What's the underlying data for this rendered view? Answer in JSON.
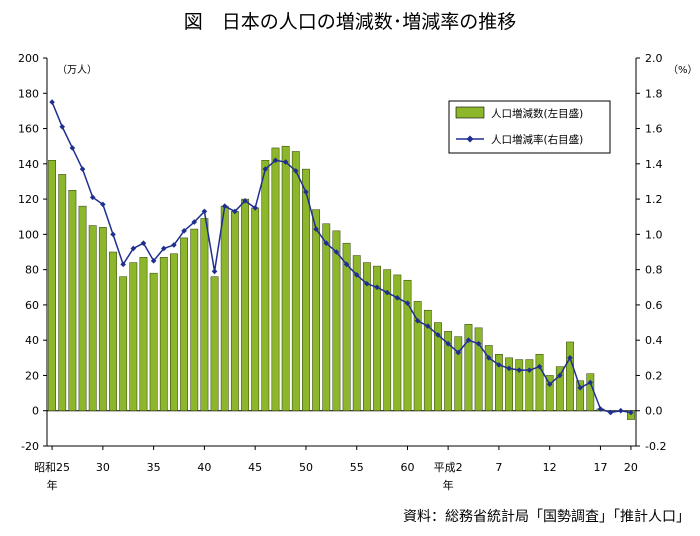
{
  "chart_data": {
    "type": "bar",
    "title": "図　日本の人口の増減数･増減率の推移",
    "source": "資料：総務省統計局「国勢調査」「推計人口」",
    "left_axis": {
      "unit": "（万人）",
      "ylim": [
        -20,
        200
      ],
      "ticks": [
        200,
        180,
        160,
        140,
        120,
        100,
        80,
        60,
        40,
        20,
        0,
        -20
      ],
      "tick_labels": [
        "200",
        "180",
        "160",
        "140",
        "120",
        "100",
        "80",
        "60",
        "40",
        "20",
        "0",
        "-20"
      ]
    },
    "right_axis": {
      "unit": "（%）",
      "ylim": [
        -0.2,
        2.0
      ],
      "ticks": [
        2.0,
        1.8,
        1.6,
        1.4,
        1.2,
        1.0,
        0.8,
        0.6,
        0.4,
        0.2,
        0.0,
        -0.2
      ],
      "tick_labels": [
        "2.0",
        "1.8",
        "1.6",
        "1.4",
        "1.2",
        "1.0",
        "0.8",
        "0.6",
        "0.4",
        "0.2",
        "0.0",
        "-0.2"
      ]
    },
    "x_tick_labels": [
      {
        "index": 0,
        "label": "昭和25",
        "sub": "年"
      },
      {
        "index": 5,
        "label": "30",
        "sub": ""
      },
      {
        "index": 10,
        "label": "35",
        "sub": ""
      },
      {
        "index": 15,
        "label": "40",
        "sub": ""
      },
      {
        "index": 20,
        "label": "45",
        "sub": ""
      },
      {
        "index": 25,
        "label": "50",
        "sub": ""
      },
      {
        "index": 30,
        "label": "55",
        "sub": ""
      },
      {
        "index": 35,
        "label": "60",
        "sub": ""
      },
      {
        "index": 39,
        "label": "平成2",
        "sub": "年"
      },
      {
        "index": 44,
        "label": "7",
        "sub": ""
      },
      {
        "index": 49,
        "label": "12",
        "sub": ""
      },
      {
        "index": 54,
        "label": "17",
        "sub": ""
      },
      {
        "index": 57,
        "label": "20",
        "sub": ""
      }
    ],
    "series": [
      {
        "name": "人口増減数(左目盛)",
        "type": "bar",
        "axis": "left",
        "color": "#8CB72A",
        "values": [
          142,
          134,
          125,
          116,
          105,
          104,
          90,
          76,
          84,
          87,
          78,
          87,
          89,
          98,
          103,
          109,
          76,
          116,
          113,
          120,
          115,
          142,
          149,
          150,
          147,
          137,
          114,
          106,
          102,
          95,
          88,
          84,
          82,
          80,
          77,
          74,
          62,
          57,
          50,
          45,
          42,
          49,
          47,
          37,
          32,
          30,
          29,
          29,
          32,
          20,
          25,
          39,
          17,
          21,
          1,
          0,
          0,
          -5
        ]
      },
      {
        "name": "人口増減率(右目盛)",
        "type": "line",
        "axis": "right",
        "color": "#1F2F8F",
        "values": [
          1.75,
          1.61,
          1.49,
          1.37,
          1.21,
          1.17,
          1.0,
          0.83,
          0.92,
          0.95,
          0.85,
          0.92,
          0.94,
          1.02,
          1.07,
          1.13,
          0.79,
          1.16,
          1.13,
          1.19,
          1.15,
          1.37,
          1.42,
          1.41,
          1.36,
          1.24,
          1.03,
          0.95,
          0.9,
          0.83,
          0.77,
          0.72,
          0.7,
          0.67,
          0.64,
          0.61,
          0.51,
          0.48,
          0.43,
          0.38,
          0.33,
          0.4,
          0.38,
          0.3,
          0.26,
          0.24,
          0.23,
          0.23,
          0.25,
          0.15,
          0.2,
          0.3,
          0.13,
          0.16,
          0.01,
          -0.01,
          0.0,
          -0.01
        ]
      }
    ],
    "legend_placement": "top-right"
  }
}
